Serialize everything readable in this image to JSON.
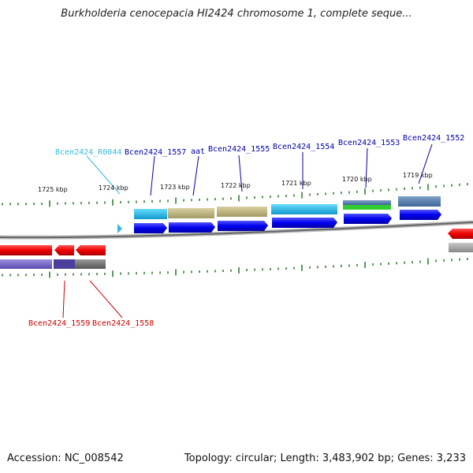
{
  "title": "Burkholderia cenocepacia HI2424 chromosome 1, complete seque...",
  "footer": {
    "accession": "Accession: NC_008542",
    "summary": "Topology: circular; Length: 3,483,902 bp; Genes: 3,233"
  },
  "scale_labels": [
    "1725 kbp",
    "1724 kbp",
    "1723 kbp",
    "1722 kbp",
    "1721 kbp",
    "1720 kbp",
    "1719 kbp"
  ],
  "gene_labels": [
    {
      "text": "Bcen2424_R0044",
      "color": "#33bbdd"
    },
    {
      "text": "Bcen2424_1557",
      "color": "#0000aa"
    },
    {
      "text": "aat",
      "color": "#0000aa"
    },
    {
      "text": "Bcen2424_1555",
      "color": "#0000aa"
    },
    {
      "text": "Bcen2424_1554",
      "color": "#0000aa"
    },
    {
      "text": "Bcen2424_1553",
      "color": "#0000aa"
    },
    {
      "text": "Bcen2424_1552",
      "color": "#0000aa"
    },
    {
      "text": "Bcen2424_1559",
      "color": "#cc0000"
    },
    {
      "text": "Bcen2424_1558",
      "color": "#cc0000"
    }
  ],
  "colors": {
    "forward_gene": "#0000ee",
    "reverse_gene": "#ee0000",
    "backbone": "#777777",
    "tick": "#227722"
  }
}
